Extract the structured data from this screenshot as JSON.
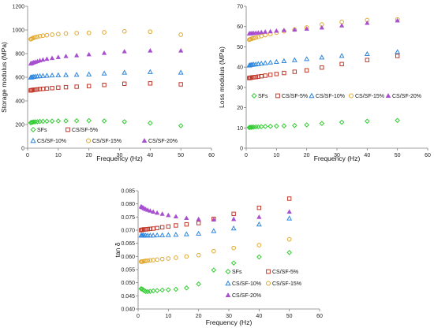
{
  "chart_data": [
    {
      "type": "scatter",
      "title": "",
      "xlabel": "Frequency (Hz)",
      "ylabel": "Storage modulus (MPa)",
      "xlim": [
        0,
        60
      ],
      "ylim": [
        0,
        1200
      ],
      "xticks": [
        0,
        10,
        20,
        30,
        40,
        50,
        60
      ],
      "yticks": [
        0,
        200,
        400,
        600,
        800,
        1000,
        1200
      ],
      "ytick_decimals": 0,
      "grid": false,
      "legend": {
        "placement": "bottom, two rows inside plot",
        "entries": [
          "SFs",
          "CS/SF-5%",
          "CS/SF-10%",
          "CS/SF-15%",
          "CS/SF-20%"
        ]
      },
      "series": [
        {
          "name": "SFs",
          "marker": "diamond",
          "color": "#33cc33",
          "x": [
            1,
            1.25,
            1.6,
            2,
            2.5,
            3.2,
            4,
            5,
            6.3,
            8,
            10,
            12.5,
            16,
            20,
            25,
            31.6,
            40,
            50
          ],
          "y": [
            215,
            218,
            220,
            222,
            223,
            224,
            226,
            227,
            228,
            229,
            230,
            231,
            232,
            233,
            230,
            224,
            212,
            190
          ]
        },
        {
          "name": "CS/SF-5%",
          "marker": "square",
          "color": "#c0392b",
          "x": [
            1,
            1.25,
            1.6,
            2,
            2.5,
            3.2,
            4,
            5,
            6.3,
            8,
            10,
            12.5,
            16,
            20,
            25,
            31.6,
            40,
            50
          ],
          "y": [
            488,
            490,
            492,
            494,
            495,
            497,
            500,
            502,
            505,
            508,
            512,
            516,
            520,
            525,
            535,
            545,
            548,
            540
          ]
        },
        {
          "name": "CS/SF-10%",
          "marker": "triangle-open",
          "color": "#2e86de",
          "x": [
            1,
            1.25,
            1.6,
            2,
            2.5,
            3.2,
            4,
            5,
            6.3,
            8,
            10,
            12.5,
            16,
            20,
            25,
            31.6,
            40,
            50
          ],
          "y": [
            598,
            600,
            602,
            604,
            606,
            608,
            610,
            612,
            614,
            616,
            618,
            620,
            622,
            625,
            632,
            640,
            645,
            640
          ]
        },
        {
          "name": "CS/SF-15%",
          "marker": "circle",
          "color": "#e0a82e",
          "x": [
            1,
            1.25,
            1.6,
            2,
            2.5,
            3.2,
            4,
            5,
            6.3,
            8,
            10,
            12.5,
            16,
            20,
            25,
            31.6,
            40,
            50
          ],
          "y": [
            922,
            925,
            930,
            934,
            938,
            942,
            948,
            952,
            956,
            960,
            965,
            970,
            973,
            975,
            980,
            988,
            985,
            960
          ]
        },
        {
          "name": "CS/SF-20%",
          "marker": "triangle-filled",
          "color": "#a84ed0",
          "x": [
            1,
            1.25,
            1.6,
            2,
            2.5,
            3.2,
            4,
            5,
            6.3,
            8,
            10,
            12.5,
            16,
            20,
            25,
            31.6,
            40,
            50
          ],
          "y": [
            715,
            718,
            722,
            726,
            730,
            735,
            742,
            748,
            755,
            762,
            770,
            778,
            785,
            793,
            805,
            818,
            825,
            825
          ]
        }
      ]
    },
    {
      "type": "scatter",
      "title": "",
      "xlabel": "Frequency (Hz)",
      "ylabel": "Loss modulus (MPa)",
      "xlim": [
        0,
        60
      ],
      "ylim": [
        0,
        70
      ],
      "xticks": [
        0,
        10,
        20,
        30,
        40,
        50,
        60
      ],
      "yticks": [
        0,
        10,
        20,
        30,
        40,
        50,
        60,
        70
      ],
      "ytick_decimals": 0,
      "grid": false,
      "legend": {
        "placement": "middle, single row inside plot",
        "entries": [
          "SFs",
          "CS/SF-5%",
          "CS/SF-10%",
          "CS/SF-15%",
          "CS/SF-20%"
        ]
      },
      "series": [
        {
          "name": "SFs",
          "marker": "diamond",
          "color": "#33cc33",
          "x": [
            1,
            1.25,
            1.6,
            2,
            2.5,
            3.2,
            4,
            5,
            6.3,
            8,
            10,
            12.5,
            16,
            20,
            25,
            31.6,
            40,
            50
          ],
          "y": [
            10.2,
            10.3,
            10.3,
            10.4,
            10.4,
            10.5,
            10.5,
            10.6,
            10.7,
            10.8,
            10.9,
            11.0,
            11.2,
            11.5,
            12.2,
            12.8,
            13.3,
            13.7
          ]
        },
        {
          "name": "CS/SF-5%",
          "marker": "square",
          "color": "#c0392b",
          "x": [
            1,
            1.25,
            1.6,
            2,
            2.5,
            3.2,
            4,
            5,
            6.3,
            8,
            10,
            12.5,
            16,
            20,
            25,
            31.6,
            40,
            50
          ],
          "y": [
            34.6,
            34.7,
            34.8,
            34.9,
            35.0,
            35.1,
            35.3,
            35.5,
            35.8,
            36.2,
            36.6,
            37.1,
            37.7,
            38.4,
            39.8,
            41.5,
            43.5,
            45.5
          ]
        },
        {
          "name": "CS/SF-10%",
          "marker": "triangle-open",
          "color": "#2e86de",
          "x": [
            1,
            1.25,
            1.6,
            2,
            2.5,
            3.2,
            4,
            5,
            6.3,
            8,
            10,
            12.5,
            16,
            20,
            25,
            31.6,
            40,
            50
          ],
          "y": [
            40.8,
            41.0,
            41.1,
            41.2,
            41.3,
            41.4,
            41.6,
            41.8,
            42.0,
            42.3,
            42.6,
            43.0,
            43.5,
            44.0,
            44.8,
            45.6,
            46.5,
            47.5
          ]
        },
        {
          "name": "CS/SF-15%",
          "marker": "circle",
          "color": "#e0a82e",
          "x": [
            1,
            1.25,
            1.6,
            2,
            2.5,
            3.2,
            4,
            5,
            6.3,
            8,
            10,
            12.5,
            16,
            20,
            25,
            31.6,
            40,
            50
          ],
          "y": [
            53.5,
            53.7,
            53.9,
            54.1,
            54.3,
            54.6,
            54.9,
            55.3,
            55.8,
            56.3,
            57.0,
            57.7,
            58.5,
            59.5,
            61.0,
            62.3,
            63.2,
            63.5
          ]
        },
        {
          "name": "CS/SF-20%",
          "marker": "triangle-filled",
          "color": "#a84ed0",
          "x": [
            1,
            1.25,
            1.6,
            2,
            2.5,
            3.2,
            4,
            5,
            6.3,
            8,
            10,
            12.5,
            16,
            20,
            25,
            31.6,
            40,
            50
          ],
          "y": [
            56.5,
            56.6,
            56.6,
            56.7,
            56.8,
            56.9,
            57.0,
            57.2,
            57.4,
            57.6,
            57.9,
            58.2,
            58.5,
            58.9,
            59.5,
            60.5,
            61.8,
            63.0
          ]
        }
      ]
    },
    {
      "type": "scatter",
      "title": "",
      "xlabel": "Frequency (Hz)",
      "ylabel": "tan δ",
      "xlim": [
        0,
        60
      ],
      "ylim": [
        0.04,
        0.085
      ],
      "xticks": [
        0,
        10,
        20,
        30,
        40,
        50,
        60
      ],
      "yticks": [
        0.04,
        0.045,
        0.05,
        0.055,
        0.06,
        0.065,
        0.07,
        0.075,
        0.08,
        0.085
      ],
      "ytick_decimals": 3,
      "grid": false,
      "legend": {
        "placement": "lower-right, two columns inside plot",
        "entries": [
          "SFs",
          "CS/SF-5%",
          "CS/SF-10%",
          "CS/SF-15%",
          "CS/SF-20%"
        ]
      },
      "series": [
        {
          "name": "SFs",
          "marker": "diamond",
          "color": "#33cc33",
          "x": [
            1,
            1.25,
            1.6,
            2,
            2.5,
            3.2,
            4,
            5,
            6.3,
            8,
            10,
            12.5,
            16,
            20,
            25,
            31.6,
            40,
            50
          ],
          "y": [
            0.0477,
            0.0476,
            0.0474,
            0.047,
            0.0467,
            0.0466,
            0.0467,
            0.0469,
            0.047,
            0.0472,
            0.0473,
            0.0475,
            0.048,
            0.0495,
            0.0548,
            0.0575,
            0.0598,
            0.0615
          ]
        },
        {
          "name": "CS/SF-5%",
          "marker": "square",
          "color": "#c0392b",
          "x": [
            1,
            1.25,
            1.6,
            2,
            2.5,
            3.2,
            4,
            5,
            6.3,
            8,
            10,
            12.5,
            16,
            20,
            25,
            31.6,
            40,
            50
          ],
          "y": [
            0.07,
            0.0701,
            0.0702,
            0.0703,
            0.0703,
            0.0704,
            0.0705,
            0.0706,
            0.0708,
            0.0711,
            0.0714,
            0.0718,
            0.0722,
            0.0727,
            0.0743,
            0.0762,
            0.0785,
            0.082
          ]
        },
        {
          "name": "CS/SF-10%",
          "marker": "triangle-open",
          "color": "#2e86de",
          "x": [
            1,
            1.25,
            1.6,
            2,
            2.5,
            3.2,
            4,
            5,
            6.3,
            8,
            10,
            12.5,
            16,
            20,
            25,
            31.6,
            40,
            50
          ],
          "y": [
            0.068,
            0.068,
            0.068,
            0.068,
            0.068,
            0.068,
            0.068,
            0.068,
            0.0681,
            0.0681,
            0.0682,
            0.0683,
            0.0685,
            0.0687,
            0.0697,
            0.0707,
            0.0722,
            0.0745
          ]
        },
        {
          "name": "CS/SF-15%",
          "marker": "circle",
          "color": "#e0a82e",
          "x": [
            1,
            1.25,
            1.6,
            2,
            2.5,
            3.2,
            4,
            5,
            6.3,
            8,
            10,
            12.5,
            16,
            20,
            25,
            31.6,
            40,
            50
          ],
          "y": [
            0.058,
            0.058,
            0.0581,
            0.0582,
            0.0583,
            0.0584,
            0.0585,
            0.0586,
            0.0588,
            0.059,
            0.0592,
            0.0595,
            0.06,
            0.0605,
            0.062,
            0.0632,
            0.0643,
            0.0665
          ]
        },
        {
          "name": "CS/SF-20%",
          "marker": "triangle-filled",
          "color": "#a84ed0",
          "x": [
            1,
            1.25,
            1.6,
            2,
            2.5,
            3.2,
            4,
            5,
            6.3,
            8,
            10,
            12.5,
            16,
            20,
            25,
            31.6,
            40,
            50
          ],
          "y": [
            0.079,
            0.0788,
            0.0786,
            0.0783,
            0.078,
            0.0777,
            0.0774,
            0.077,
            0.0766,
            0.0762,
            0.0757,
            0.0752,
            0.0746,
            0.0742,
            0.074,
            0.0742,
            0.075,
            0.077
          ]
        }
      ]
    }
  ]
}
